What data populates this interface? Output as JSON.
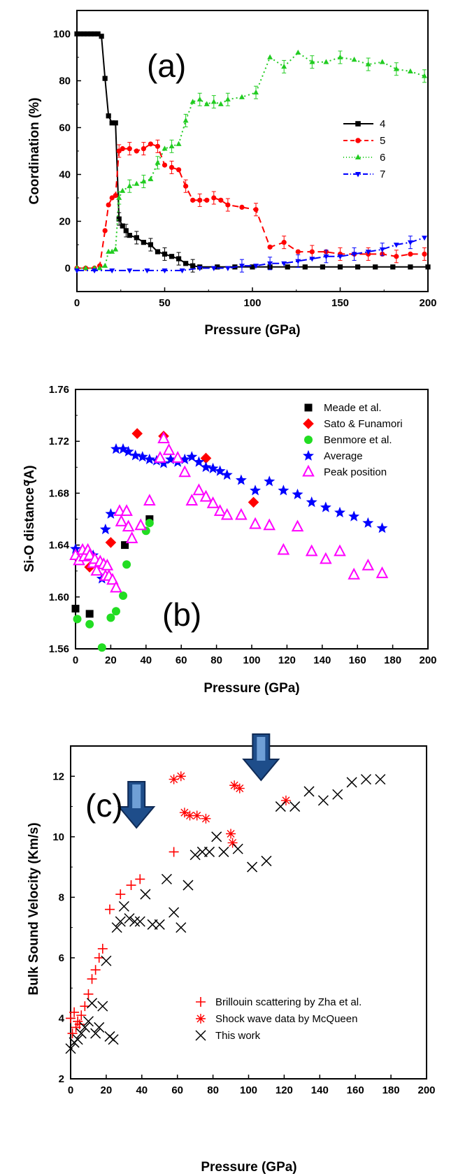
{
  "chart_data": [
    {
      "type": "line",
      "panel_label": "(a)",
      "xlabel": "Pressure (GPa)",
      "ylabel": "Coordination (%)",
      "xlim": [
        0,
        200
      ],
      "ylim": [
        -10,
        110
      ],
      "xticks": [
        0,
        50,
        100,
        150,
        200
      ],
      "yticks": [
        0,
        20,
        40,
        60,
        80,
        100
      ],
      "legend_position": "right-middle",
      "series": [
        {
          "name": "4",
          "color": "#000000",
          "marker": "square",
          "dash": "solid",
          "x": [
            0,
            2,
            4,
            6,
            8,
            10,
            12,
            14,
            16,
            18,
            20,
            22,
            24,
            26,
            28,
            30,
            34,
            38,
            42,
            46,
            50,
            54,
            58,
            62,
            66,
            70,
            80,
            90,
            100,
            110,
            120,
            130,
            140,
            150,
            160,
            170,
            180,
            190,
            200
          ],
          "y": [
            100,
            100,
            100,
            100,
            100,
            100,
            100,
            99,
            81,
            65,
            62,
            62,
            21,
            18,
            16,
            14,
            13,
            11,
            10,
            7,
            6,
            5,
            4,
            2,
            1,
            0.5,
            0.5,
            0.5,
            0.5,
            0.5,
            0.5,
            0.5,
            0.5,
            0.5,
            0.5,
            0.5,
            0.5,
            0.5,
            0.5
          ]
        },
        {
          "name": "5",
          "color": "#ff0000",
          "marker": "circle",
          "dash": "dashed",
          "x": [
            0,
            5,
            10,
            13,
            16,
            18,
            20,
            22,
            24,
            26,
            30,
            34,
            38,
            42,
            46,
            50,
            54,
            58,
            62,
            66,
            70,
            74,
            78,
            82,
            86,
            94,
            102,
            110,
            118,
            126,
            134,
            142,
            150,
            158,
            166,
            174,
            182,
            190,
            198
          ],
          "y": [
            0,
            0,
            0,
            1,
            16,
            27,
            30,
            31,
            50,
            51,
            51,
            50,
            51,
            53,
            52,
            44,
            43,
            42,
            35,
            29,
            29,
            29,
            30,
            29,
            27,
            26,
            25,
            9,
            11,
            7,
            7,
            7,
            6,
            6,
            6,
            6,
            5,
            6,
            6
          ]
        },
        {
          "name": "6",
          "color": "#22cc22",
          "marker": "triangle-up",
          "dash": "dotted",
          "x": [
            0,
            5,
            10,
            13,
            16,
            18,
            20,
            22,
            24,
            26,
            30,
            34,
            38,
            42,
            46,
            50,
            54,
            58,
            62,
            66,
            70,
            74,
            78,
            82,
            86,
            94,
            102,
            110,
            118,
            126,
            134,
            142,
            150,
            158,
            166,
            174,
            182,
            190,
            198
          ],
          "y": [
            0,
            0,
            0,
            0,
            1,
            7,
            7,
            8,
            30,
            33,
            35,
            36,
            37,
            38,
            45,
            51,
            52,
            53,
            63,
            71,
            72,
            70,
            71,
            70,
            72,
            73,
            75,
            90,
            86,
            92,
            88,
            88,
            90,
            89,
            87,
            88,
            85,
            84,
            82
          ]
        },
        {
          "name": "7",
          "color": "#0000ff",
          "marker": "triangle-down",
          "dash": "dashdot",
          "x": [
            0,
            10,
            20,
            30,
            40,
            50,
            60,
            70,
            78,
            86,
            94,
            102,
            110,
            118,
            126,
            134,
            142,
            150,
            158,
            166,
            174,
            182,
            190,
            198
          ],
          "y": [
            -1,
            -1,
            -1,
            -1,
            -1,
            -1,
            -1,
            0,
            0,
            0,
            1,
            1,
            2,
            2,
            3,
            4,
            5,
            5,
            6,
            7,
            8,
            10,
            11,
            13
          ]
        }
      ]
    },
    {
      "type": "scatter",
      "panel_label": "(b)",
      "xlabel": "Pressure (GPa)",
      "ylabel": "Si-O distance (A)",
      "ylabel_accent": "o",
      "xlim": [
        0,
        200
      ],
      "ylim": [
        1.56,
        1.76
      ],
      "xticks": [
        0,
        20,
        40,
        60,
        80,
        100,
        120,
        140,
        160,
        180,
        200
      ],
      "yticks": [
        "1.56",
        "1.60",
        "1.64",
        "1.68",
        "1.72",
        "1.76"
      ],
      "legend_position": "top-right",
      "series": [
        {
          "name": "Meade et al.",
          "color": "#000000",
          "marker": "square",
          "x": [
            0,
            8,
            28,
            42
          ],
          "y": [
            1.591,
            1.587,
            1.64,
            1.66
          ]
        },
        {
          "name": "Sato & Funamori",
          "color": "#ff0000",
          "marker": "diamond",
          "x": [
            8,
            20,
            35,
            50,
            74,
            101
          ],
          "y": [
            1.623,
            1.642,
            1.726,
            1.724,
            1.707,
            1.673
          ]
        },
        {
          "name": "Benmore et al.",
          "color": "#22dd22",
          "marker": "circle",
          "x": [
            1,
            8,
            15,
            20,
            23,
            27,
            29,
            40,
            42
          ],
          "y": [
            1.583,
            1.579,
            1.561,
            1.584,
            1.589,
            1.601,
            1.625,
            1.651,
            1.657
          ]
        },
        {
          "name": "Average",
          "color": "#0000ff",
          "marker": "star",
          "x": [
            0,
            5,
            10,
            15,
            17,
            20,
            23,
            27,
            30,
            34,
            38,
            42,
            46,
            50,
            54,
            58,
            62,
            66,
            70,
            74,
            78,
            82,
            86,
            94,
            102,
            110,
            118,
            126,
            134,
            142,
            150,
            158,
            166,
            174
          ],
          "y": [
            1.637,
            1.633,
            1.632,
            1.614,
            1.652,
            1.664,
            1.714,
            1.714,
            1.712,
            1.709,
            1.708,
            1.706,
            1.705,
            1.703,
            1.706,
            1.704,
            1.706,
            1.708,
            1.704,
            1.7,
            1.699,
            1.697,
            1.694,
            1.69,
            1.682,
            1.689,
            1.682,
            1.679,
            1.673,
            1.669,
            1.665,
            1.662,
            1.657,
            1.653
          ]
        },
        {
          "name": "Peak position",
          "color": "#ff00ff",
          "marker": "triangle-up",
          "x": [
            0,
            2,
            4,
            5,
            7,
            8,
            10,
            11,
            12,
            14,
            16,
            17,
            18,
            19,
            21,
            23,
            25,
            26,
            29,
            30,
            32,
            37,
            42,
            48,
            50,
            53,
            58,
            62,
            66,
            70,
            74,
            78,
            82,
            86,
            94,
            102,
            110,
            118,
            126,
            134,
            142,
            150,
            158,
            166,
            174
          ],
          "y": [
            1.632,
            1.628,
            1.636,
            1.631,
            1.636,
            1.632,
            1.626,
            1.629,
            1.62,
            1.627,
            1.625,
            1.616,
            1.624,
            1.616,
            1.613,
            1.607,
            1.666,
            1.658,
            1.666,
            1.654,
            1.645,
            1.655,
            1.674,
            1.707,
            1.722,
            1.713,
            1.707,
            1.696,
            1.674,
            1.682,
            1.677,
            1.672,
            1.666,
            1.663,
            1.663,
            1.656,
            1.655,
            1.636,
            1.654,
            1.635,
            1.629,
            1.635,
            1.617,
            1.624,
            1.618
          ]
        }
      ]
    },
    {
      "type": "scatter",
      "panel_label": "(c)",
      "xlabel": "Pressure (GPa)",
      "ylabel": "Bulk Sound Velocity (Km/s)",
      "xlim": [
        0,
        200
      ],
      "ylim": [
        2,
        13
      ],
      "xticks": [
        0,
        20,
        40,
        60,
        80,
        100,
        120,
        140,
        160,
        180,
        200
      ],
      "yticks": [
        2,
        4,
        6,
        8,
        10,
        12
      ],
      "legend_position": "bottom-right",
      "arrow_color": "#1e4d8a",
      "arrow_pressures": [
        37,
        107
      ],
      "series": [
        {
          "name": "Brillouin scattering by Zha et al.",
          "color": "#ff0000",
          "marker": "plus",
          "x": [
            0,
            1,
            2,
            3,
            4,
            5,
            6,
            8,
            10,
            12,
            14,
            16,
            18,
            22,
            28,
            34,
            39,
            58
          ],
          "y": [
            4.0,
            3.5,
            4.2,
            3.7,
            3.9,
            3.8,
            4.1,
            4.4,
            4.8,
            5.3,
            5.6,
            6.0,
            6.3,
            7.6,
            8.1,
            8.4,
            8.6,
            9.5
          ]
        },
        {
          "name": "Shock wave data by McQueen",
          "color": "#ff0000",
          "marker": "asterisk",
          "x": [
            58,
            62,
            64,
            67,
            71,
            76,
            90,
            91,
            92,
            95,
            121
          ],
          "y": [
            11.9,
            12.0,
            10.8,
            10.7,
            10.7,
            10.6,
            10.1,
            9.8,
            11.7,
            11.6,
            11.2
          ]
        },
        {
          "name": "This work",
          "color": "#000000",
          "marker": "x",
          "x": [
            0,
            2,
            4,
            6,
            8,
            10,
            12,
            14,
            16,
            18,
            20,
            22,
            24,
            26,
            28,
            30,
            33,
            36,
            39,
            42,
            46,
            50,
            54,
            58,
            62,
            66,
            70,
            74,
            78,
            82,
            86,
            94,
            102,
            110,
            118,
            126,
            134,
            142,
            150,
            158,
            166,
            174
          ],
          "y": [
            3.0,
            3.2,
            3.3,
            3.5,
            3.7,
            3.9,
            4.5,
            3.5,
            3.7,
            4.4,
            5.9,
            3.4,
            3.3,
            7.0,
            7.2,
            7.7,
            7.3,
            7.2,
            7.2,
            8.1,
            7.1,
            7.1,
            8.6,
            7.5,
            7.0,
            8.4,
            9.4,
            9.5,
            9.5,
            10.0,
            9.5,
            9.6,
            9.0,
            9.2,
            11.0,
            11.0,
            11.5,
            11.2,
            11.4,
            11.8,
            11.9,
            11.9
          ]
        }
      ]
    }
  ]
}
